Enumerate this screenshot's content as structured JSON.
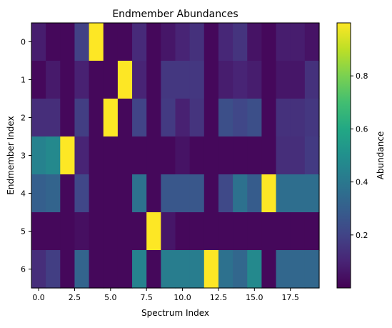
{
  "chart_data": {
    "type": "heatmap",
    "title": "Endmember Abundances",
    "xlabel": "Spectrum Index",
    "ylabel": "Endmember Index",
    "colorbar_label": "Abundance",
    "colormap": "viridis",
    "x_ticks": [
      "0.0",
      "2.5",
      "5.0",
      "7.5",
      "10.0",
      "12.5",
      "15.0",
      "17.5"
    ],
    "y_ticks": [
      "0",
      "1",
      "2",
      "3",
      "4",
      "5",
      "6"
    ],
    "colorbar_ticks": [
      "0.2",
      "0.4",
      "0.6",
      "0.8"
    ],
    "vmin": 0.0,
    "vmax": 1.0,
    "values": [
      [
        0.08,
        0.02,
        0.02,
        0.19,
        1.0,
        0.02,
        0.02,
        0.12,
        0.02,
        0.06,
        0.1,
        0.14,
        0.02,
        0.11,
        0.15,
        0.05,
        0.02,
        0.08,
        0.08,
        0.05
      ],
      [
        0.02,
        0.07,
        0.02,
        0.09,
        0.02,
        0.02,
        1.0,
        0.1,
        0.02,
        0.16,
        0.16,
        0.16,
        0.02,
        0.08,
        0.1,
        0.08,
        0.02,
        0.06,
        0.06,
        0.14
      ],
      [
        0.13,
        0.13,
        0.02,
        0.18,
        0.02,
        1.0,
        0.02,
        0.2,
        0.02,
        0.17,
        0.09,
        0.15,
        0.02,
        0.24,
        0.21,
        0.24,
        0.02,
        0.14,
        0.14,
        0.16
      ],
      [
        0.44,
        0.47,
        1.0,
        0.1,
        0.02,
        0.02,
        0.02,
        0.02,
        0.02,
        0.02,
        0.05,
        0.02,
        0.02,
        0.02,
        0.02,
        0.02,
        0.02,
        0.13,
        0.13,
        0.17
      ],
      [
        0.3,
        0.32,
        0.02,
        0.21,
        0.02,
        0.02,
        0.02,
        0.37,
        0.02,
        0.27,
        0.27,
        0.27,
        0.02,
        0.22,
        0.37,
        0.29,
        1.0,
        0.36,
        0.36,
        0.36
      ],
      [
        0.02,
        0.02,
        0.02,
        0.04,
        0.02,
        0.02,
        0.02,
        0.02,
        1.0,
        0.06,
        0.02,
        0.02,
        0.02,
        0.02,
        0.02,
        0.02,
        0.02,
        0.02,
        0.02,
        0.02
      ],
      [
        0.13,
        0.18,
        0.02,
        0.32,
        0.02,
        0.02,
        0.02,
        0.44,
        0.02,
        0.42,
        0.42,
        0.42,
        1.0,
        0.37,
        0.33,
        0.47,
        0.02,
        0.33,
        0.33,
        0.33
      ]
    ]
  }
}
